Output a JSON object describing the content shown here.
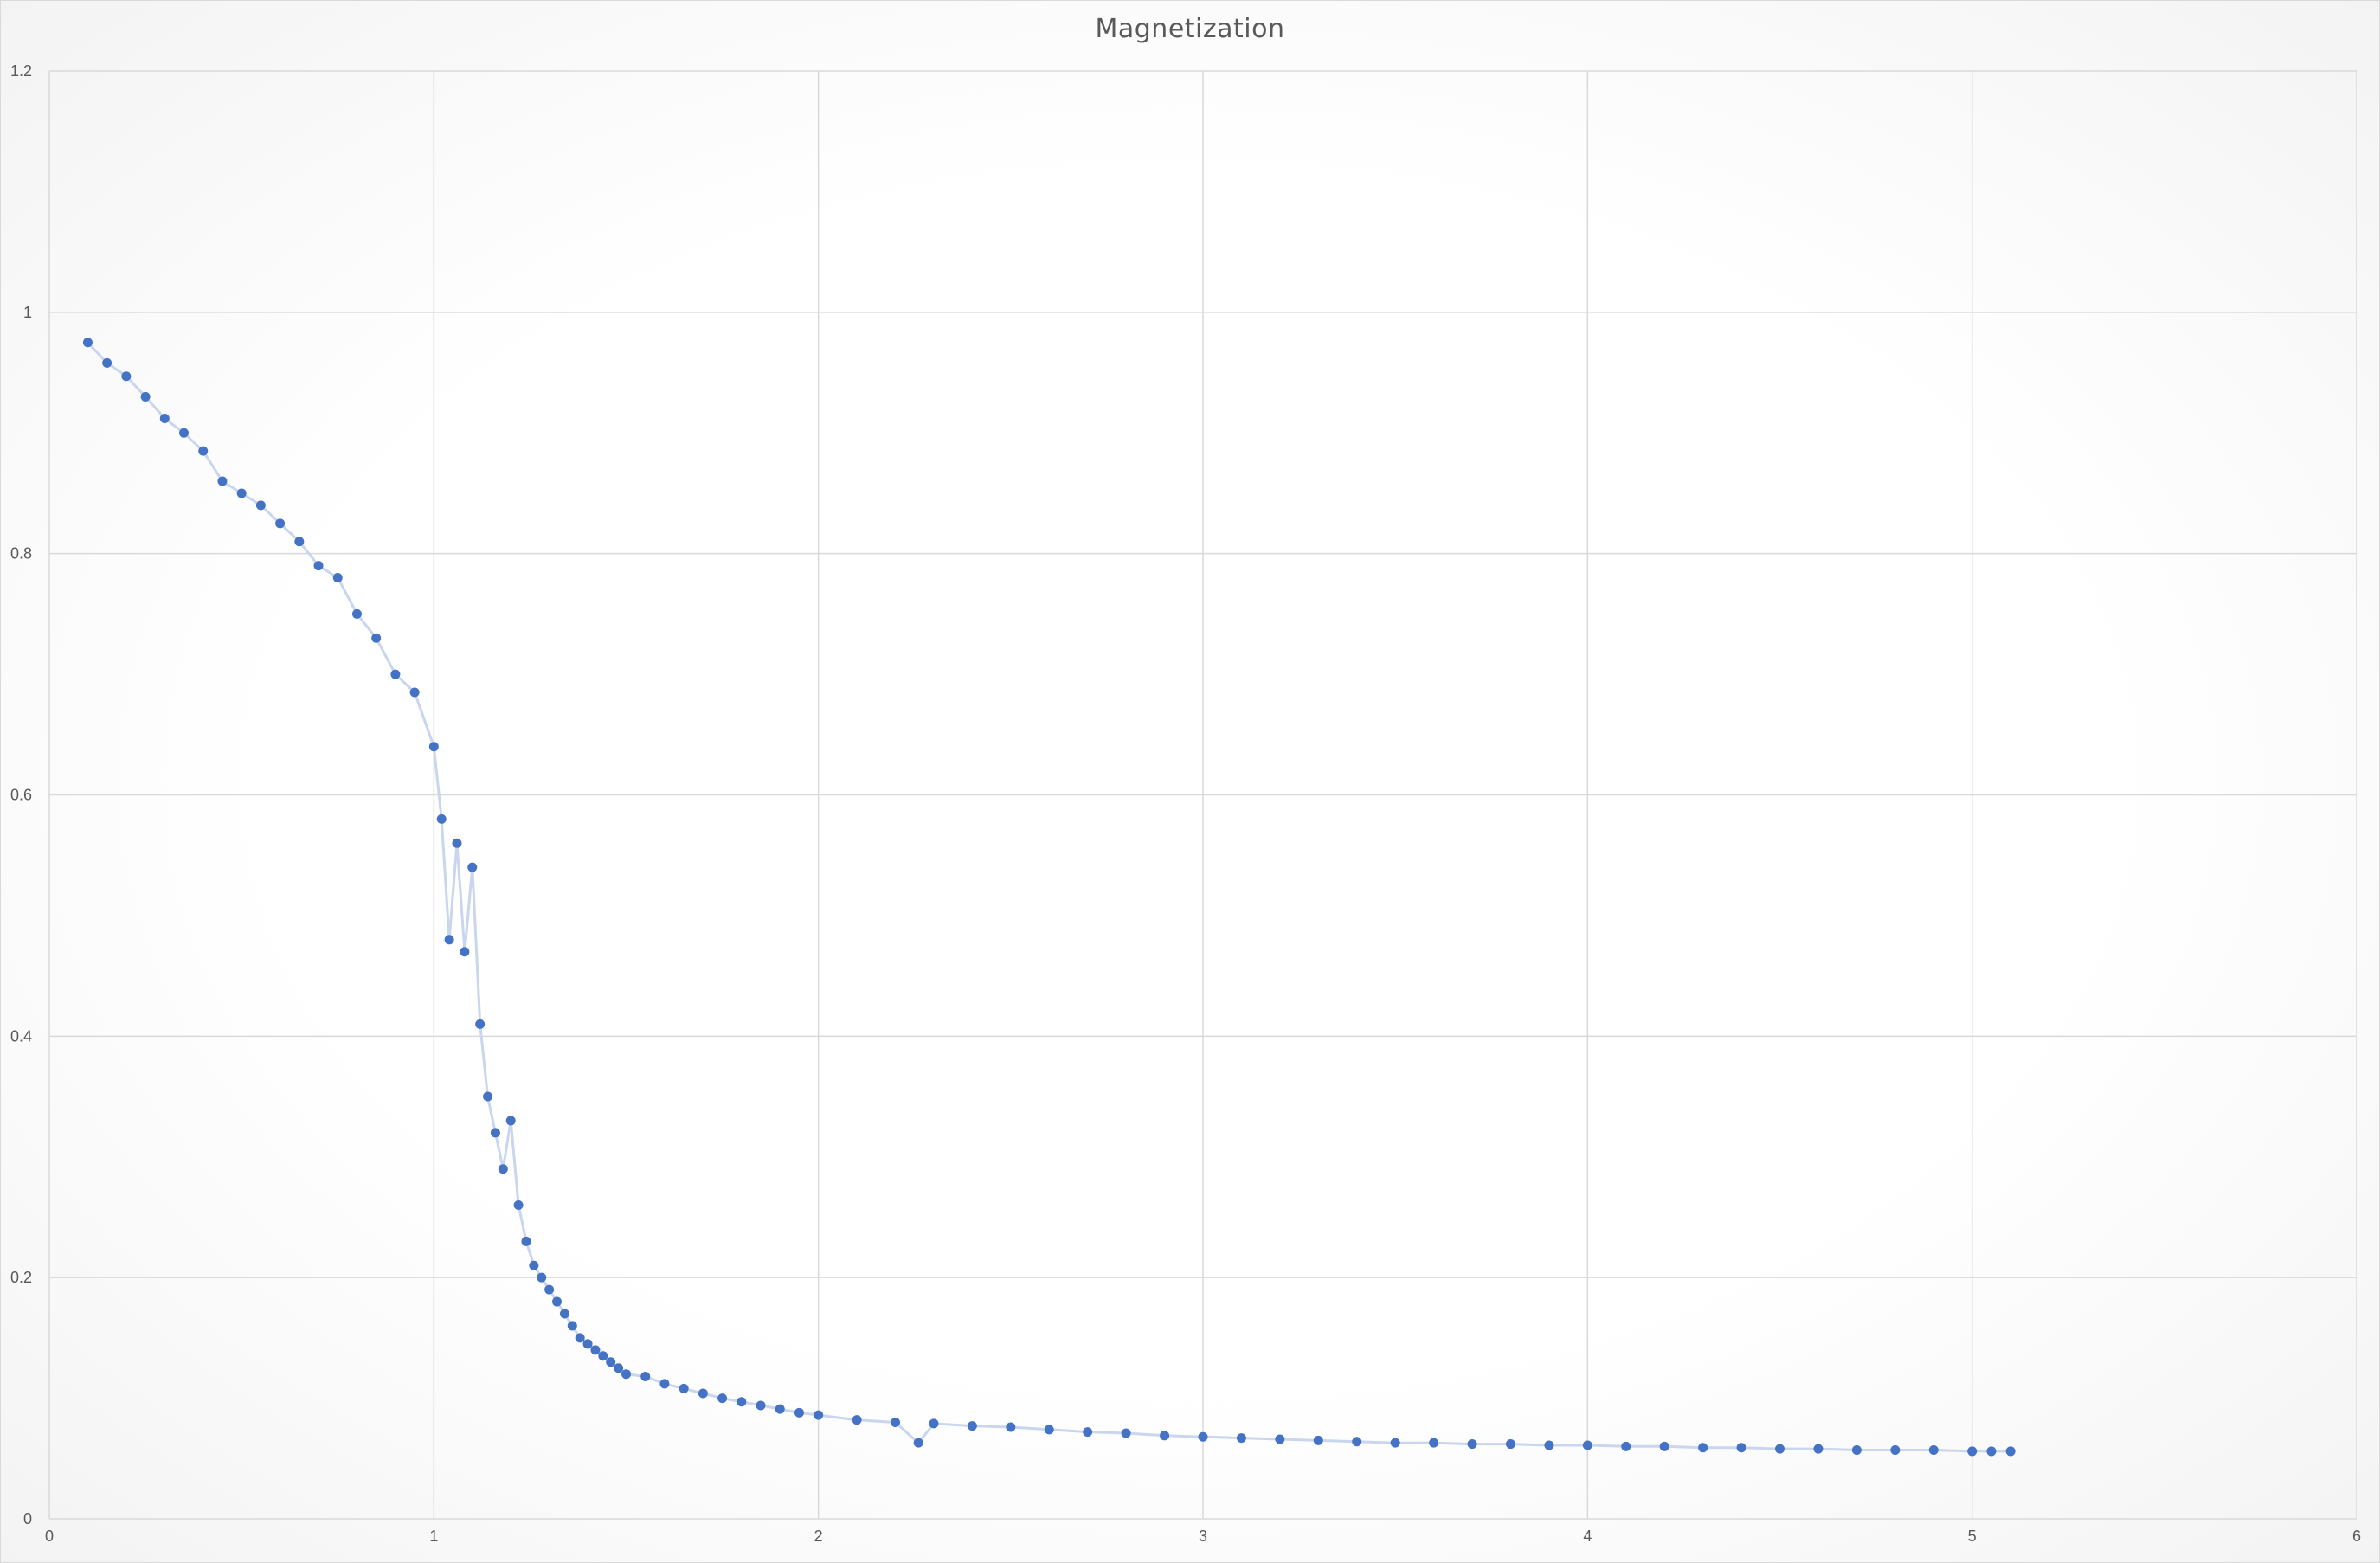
{
  "chart_data": {
    "type": "scatter",
    "title": "Magnetization",
    "xlabel": "",
    "ylabel": "",
    "xlim": [
      0,
      6
    ],
    "ylim": [
      0,
      1.2
    ],
    "x_ticks": [
      {
        "value": 0,
        "label": "0"
      },
      {
        "value": 1,
        "label": "1"
      },
      {
        "value": 2,
        "label": "2"
      },
      {
        "value": 3,
        "label": "3"
      },
      {
        "value": 4,
        "label": "4"
      },
      {
        "value": 5,
        "label": "5"
      },
      {
        "value": 6,
        "label": "6"
      }
    ],
    "y_ticks": [
      {
        "value": 0,
        "label": "0"
      },
      {
        "value": 0.2,
        "label": "0.2"
      },
      {
        "value": 0.4,
        "label": "0.4"
      },
      {
        "value": 0.6,
        "label": "0.6"
      },
      {
        "value": 0.8,
        "label": "0.8"
      },
      {
        "value": 1,
        "label": "1"
      },
      {
        "value": 1.2,
        "label": "1.2"
      }
    ],
    "grid": true,
    "legend": "none",
    "marker_color": "#4472C4",
    "line_color": "#C9D6EE",
    "series": [
      {
        "x": [
          0.1,
          0.15,
          0.2,
          0.25,
          0.3,
          0.35,
          0.4,
          0.45,
          0.5,
          0.55,
          0.6,
          0.65,
          0.7,
          0.75,
          0.8,
          0.85,
          0.9,
          0.95,
          1.0,
          1.02,
          1.04,
          1.06,
          1.08,
          1.1,
          1.12,
          1.14,
          1.16,
          1.18,
          1.2,
          1.22,
          1.24,
          1.26,
          1.28,
          1.3,
          1.32,
          1.34,
          1.36,
          1.38,
          1.4,
          1.42,
          1.44,
          1.46,
          1.48,
          1.5,
          1.55,
          1.6,
          1.65,
          1.7,
          1.75,
          1.8,
          1.85,
          1.9,
          1.95,
          2.0,
          2.1,
          2.2,
          2.26,
          2.3,
          2.4,
          2.5,
          2.6,
          2.7,
          2.8,
          2.9,
          3.0,
          3.1,
          3.2,
          3.3,
          3.4,
          3.5,
          3.6,
          3.7,
          3.8,
          3.9,
          4.0,
          4.1,
          4.2,
          4.3,
          4.4,
          4.5,
          4.6,
          4.7,
          4.8,
          4.9,
          5.0,
          5.05,
          5.1
        ],
        "y": [
          0.975,
          0.958,
          0.947,
          0.93,
          0.912,
          0.9,
          0.885,
          0.86,
          0.85,
          0.84,
          0.825,
          0.81,
          0.79,
          0.78,
          0.75,
          0.73,
          0.7,
          0.685,
          0.64,
          0.58,
          0.48,
          0.56,
          0.47,
          0.54,
          0.41,
          0.35,
          0.32,
          0.29,
          0.33,
          0.26,
          0.23,
          0.21,
          0.2,
          0.19,
          0.18,
          0.17,
          0.16,
          0.15,
          0.145,
          0.14,
          0.135,
          0.13,
          0.125,
          0.12,
          0.118,
          0.112,
          0.108,
          0.104,
          0.1,
          0.097,
          0.094,
          0.091,
          0.088,
          0.086,
          0.082,
          0.08,
          0.063,
          0.079,
          0.077,
          0.076,
          0.074,
          0.072,
          0.071,
          0.069,
          0.068,
          0.067,
          0.066,
          0.065,
          0.064,
          0.063,
          0.063,
          0.062,
          0.062,
          0.061,
          0.061,
          0.06,
          0.06,
          0.059,
          0.059,
          0.058,
          0.058,
          0.057,
          0.057,
          0.057,
          0.056,
          0.056,
          0.056
        ]
      }
    ]
  }
}
